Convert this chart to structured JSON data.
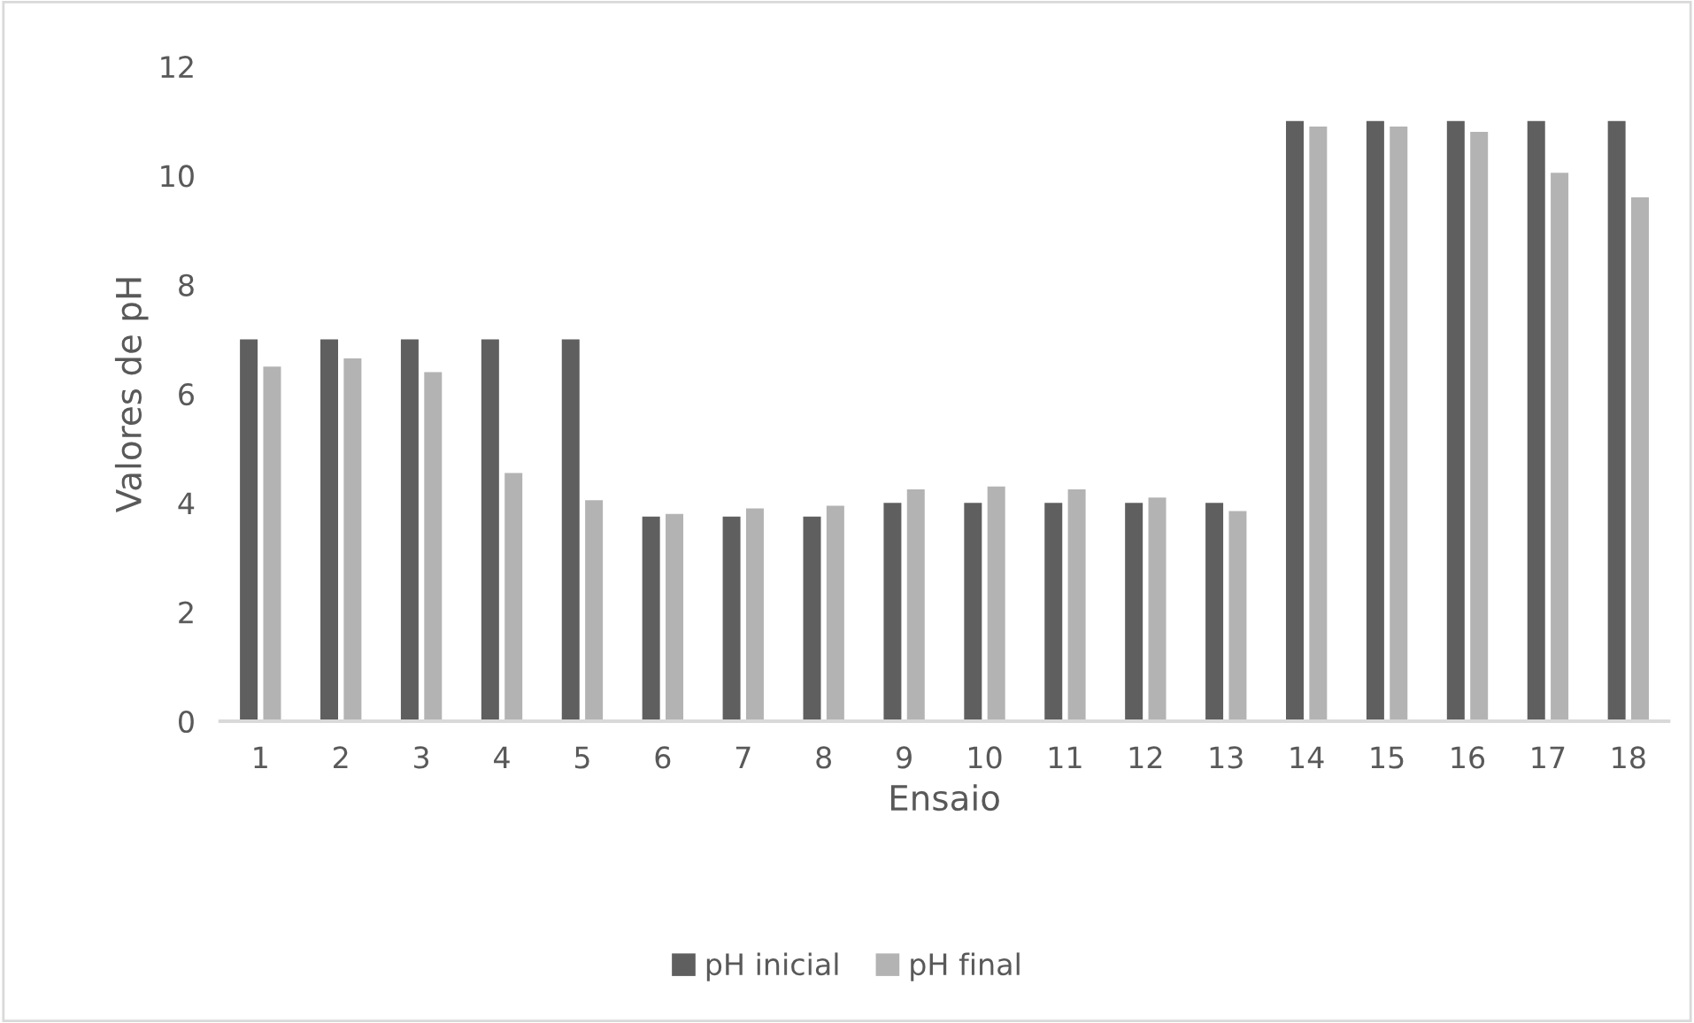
{
  "chart_data": {
    "type": "bar",
    "xlabel": "Ensaio",
    "ylabel": "Valores de pH",
    "categories": [
      "1",
      "2",
      "3",
      "4",
      "5",
      "6",
      "7",
      "8",
      "9",
      "10",
      "11",
      "12",
      "13",
      "14",
      "15",
      "16",
      "17",
      "18"
    ],
    "series": [
      {
        "name": "pH inicial",
        "color": "#5f5f5f",
        "values": [
          7,
          7,
          7,
          7,
          7,
          3.75,
          3.75,
          3.75,
          4,
          4,
          4,
          4,
          4,
          11,
          11,
          11,
          11,
          11
        ]
      },
      {
        "name": "pH final",
        "color": "#b3b3b3",
        "values": [
          6.5,
          6.65,
          6.4,
          4.55,
          4.05,
          3.8,
          3.9,
          3.95,
          4.25,
          4.3,
          4.25,
          4.1,
          3.85,
          10.9,
          10.9,
          10.8,
          10.05,
          9.6
        ]
      }
    ],
    "ylim": [
      0,
      12
    ],
    "yticks": [
      0,
      2,
      4,
      6,
      8,
      10,
      12
    ],
    "grid": false,
    "legend": "bottom"
  }
}
